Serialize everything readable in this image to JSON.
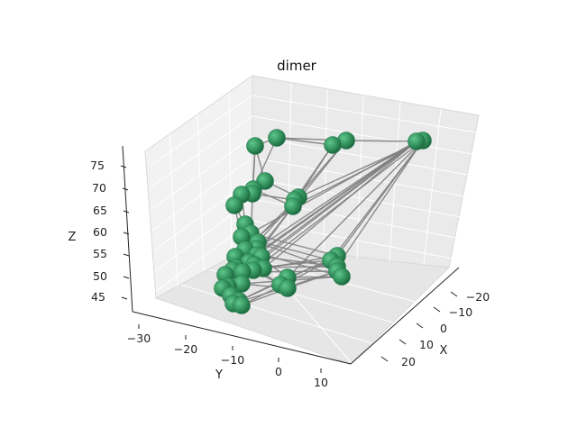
{
  "chart_data": {
    "type": "scatter",
    "projection": "3d",
    "title": "dimer",
    "xlabel": "X",
    "ylabel": "Y",
    "zlabel": "Z",
    "xlim": [
      -25,
      28
    ],
    "ylim": [
      -34,
      16
    ],
    "zlim": [
      43,
      78
    ],
    "xticks": [
      "−20",
      "−10",
      "0",
      "10",
      "20"
    ],
    "yticks": [
      "−30",
      "−20",
      "−10",
      "0",
      "10"
    ],
    "zticks": [
      "45",
      "50",
      "55",
      "60",
      "65",
      "70",
      "75"
    ],
    "grid": true,
    "marker_color": "#2e8b57",
    "edge_color": "#808080",
    "node_count": 46
  }
}
